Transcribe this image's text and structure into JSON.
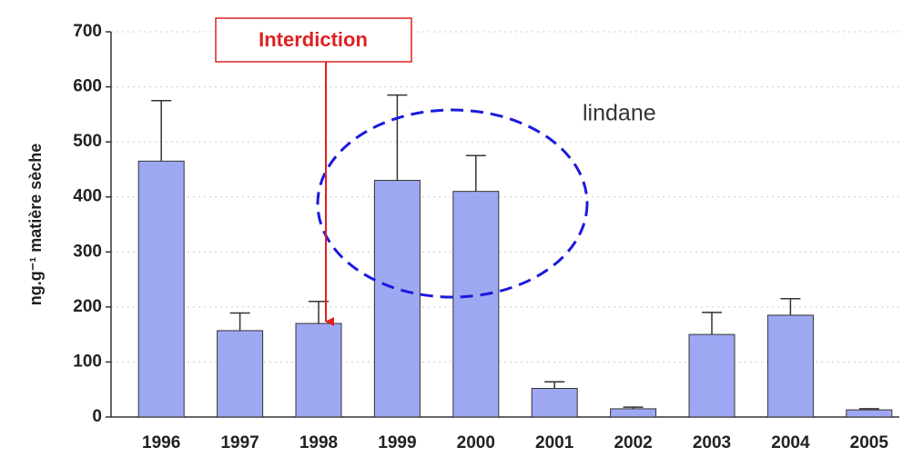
{
  "chart_data": {
    "type": "bar",
    "y_label": "ng.g⁻¹ matière sèche",
    "annotations": [
      "Interdiction",
      "lindane"
    ],
    "categories": [
      "1996",
      "1997",
      "1998",
      "1999",
      "2000",
      "2001",
      "2002",
      "2003",
      "2004",
      "2005"
    ],
    "values": [
      465,
      157,
      170,
      430,
      410,
      52,
      15,
      150,
      185,
      13
    ],
    "errors": [
      110,
      32,
      40,
      155,
      65,
      12,
      3,
      40,
      30,
      2
    ],
    "color": "#9ea8f2",
    "ylim": [
      0,
      700
    ],
    "yticks": [
      0,
      100,
      200,
      300,
      400,
      500,
      600,
      700
    ],
    "grid": true
  }
}
